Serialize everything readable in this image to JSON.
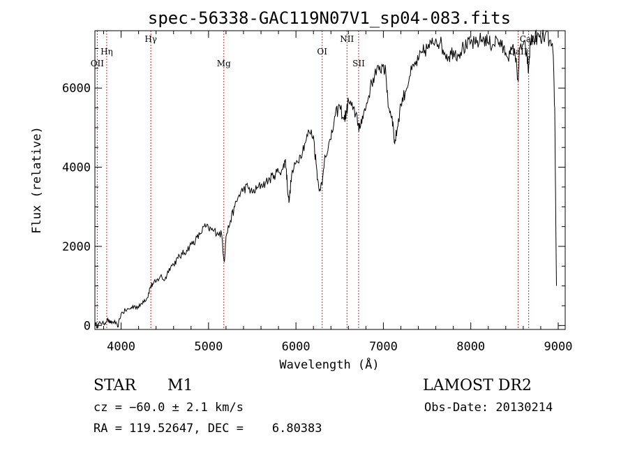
{
  "chart_data": {
    "type": "line",
    "title": "spec-56338-GAC119N07V1_sp04-083.fits",
    "xlabel": "Wavelength (Å)",
    "ylabel": "Flux (relative)",
    "xlim": [
      3700,
      9080
    ],
    "ylim": [
      -100,
      7450
    ],
    "x_ticks": [
      4000,
      5000,
      6000,
      7000,
      8000,
      9000
    ],
    "y_ticks": [
      0,
      2000,
      4000,
      6000
    ],
    "grid": false,
    "series": [
      {
        "color": "#000000",
        "points": [
          [
            3700,
            60
          ],
          [
            3730,
            -20
          ],
          [
            3760,
            80
          ],
          [
            3800,
            40
          ],
          [
            3840,
            150
          ],
          [
            3880,
            60
          ],
          [
            3920,
            100
          ],
          [
            3960,
            -40
          ],
          [
            4000,
            300
          ],
          [
            4050,
            380
          ],
          [
            4100,
            420
          ],
          [
            4150,
            500
          ],
          [
            4200,
            450
          ],
          [
            4250,
            620
          ],
          [
            4300,
            700
          ],
          [
            4330,
            950
          ],
          [
            4360,
            1050
          ],
          [
            4400,
            1100
          ],
          [
            4450,
            1250
          ],
          [
            4500,
            1150
          ],
          [
            4550,
            1450
          ],
          [
            4600,
            1550
          ],
          [
            4650,
            1700
          ],
          [
            4700,
            1800
          ],
          [
            4750,
            1900
          ],
          [
            4800,
            2050
          ],
          [
            4850,
            2150
          ],
          [
            4900,
            2300
          ],
          [
            4950,
            2500
          ],
          [
            5000,
            2450
          ],
          [
            5050,
            2400
          ],
          [
            5100,
            2350
          ],
          [
            5150,
            2300
          ],
          [
            5180,
            1600
          ],
          [
            5200,
            2250
          ],
          [
            5250,
            2650
          ],
          [
            5300,
            3000
          ],
          [
            5350,
            3300
          ],
          [
            5400,
            3450
          ],
          [
            5450,
            3500
          ],
          [
            5500,
            3350
          ],
          [
            5550,
            3450
          ],
          [
            5600,
            3550
          ],
          [
            5650,
            3600
          ],
          [
            5700,
            3700
          ],
          [
            5750,
            3800
          ],
          [
            5800,
            3900
          ],
          [
            5850,
            3950
          ],
          [
            5880,
            4200
          ],
          [
            5900,
            3600
          ],
          [
            5920,
            3100
          ],
          [
            5950,
            3800
          ],
          [
            6000,
            4100
          ],
          [
            6050,
            4300
          ],
          [
            6100,
            4600
          ],
          [
            6150,
            4900
          ],
          [
            6200,
            4800
          ],
          [
            6230,
            4100
          ],
          [
            6260,
            3500
          ],
          [
            6300,
            3550
          ],
          [
            6330,
            4300
          ],
          [
            6400,
            4700
          ],
          [
            6450,
            5300
          ],
          [
            6500,
            5550
          ],
          [
            6550,
            5200
          ],
          [
            6580,
            5400
          ],
          [
            6600,
            5700
          ],
          [
            6650,
            5450
          ],
          [
            6700,
            5300
          ],
          [
            6720,
            4900
          ],
          [
            6760,
            5300
          ],
          [
            6800,
            5500
          ],
          [
            6850,
            6000
          ],
          [
            6900,
            6350
          ],
          [
            6950,
            6450
          ],
          [
            7000,
            6600
          ],
          [
            7030,
            6300
          ],
          [
            7060,
            5500
          ],
          [
            7100,
            5300
          ],
          [
            7130,
            4600
          ],
          [
            7160,
            5000
          ],
          [
            7200,
            5600
          ],
          [
            7250,
            5900
          ],
          [
            7300,
            6300
          ],
          [
            7350,
            6550
          ],
          [
            7400,
            6700
          ],
          [
            7450,
            6900
          ],
          [
            7500,
            7000
          ],
          [
            7550,
            7100
          ],
          [
            7600,
            7250
          ],
          [
            7650,
            7150
          ],
          [
            7700,
            6900
          ],
          [
            7750,
            6800
          ],
          [
            7800,
            6950
          ],
          [
            7850,
            6850
          ],
          [
            7900,
            7000
          ],
          [
            7950,
            7050
          ],
          [
            8000,
            7150
          ],
          [
            8050,
            7100
          ],
          [
            8100,
            7200
          ],
          [
            8150,
            7250
          ],
          [
            8200,
            7150
          ],
          [
            8250,
            7100
          ],
          [
            8300,
            7250
          ],
          [
            8350,
            7050
          ],
          [
            8400,
            6900
          ],
          [
            8450,
            6850
          ],
          [
            8500,
            7000
          ],
          [
            8540,
            6200
          ],
          [
            8560,
            7000
          ],
          [
            8600,
            7100
          ],
          [
            8640,
            6900
          ],
          [
            8660,
            6400
          ],
          [
            8680,
            7150
          ],
          [
            8720,
            7250
          ],
          [
            8760,
            7300
          ],
          [
            8800,
            7200
          ],
          [
            8850,
            7350
          ],
          [
            8900,
            7200
          ],
          [
            8940,
            6900
          ],
          [
            8960,
            5500
          ],
          [
            8980,
            1000
          ]
        ]
      }
    ],
    "lines": [
      {
        "label": "OII",
        "x": 3727,
        "label_row": 3
      },
      {
        "label": "Hη",
        "x": 3835,
        "label_row": 2
      },
      {
        "label": "Hγ",
        "x": 4340,
        "label_row": 1
      },
      {
        "label": "Mg",
        "x": 5175,
        "label_row": 3
      },
      {
        "label": "OI",
        "x": 6300,
        "label_row": 2
      },
      {
        "label": "NII",
        "x": 6584,
        "label_row": 1
      },
      {
        "label": "SII",
        "x": 6717,
        "label_row": 3
      },
      {
        "label": "CaII",
        "x": 8542,
        "label_row": 2
      },
      {
        "label": "CaII",
        "x": 8662,
        "label_row": 1
      }
    ]
  },
  "info": {
    "object_class": "STAR",
    "subclass": "M1",
    "survey": "LAMOST DR2",
    "cz": "cz = −60.0 ± 2.1 km/s",
    "obs_date": "Obs-Date: 20130214",
    "coords": "RA = 119.52647, DEC =    6.80383"
  },
  "colors": {
    "line_marker": "#b03030",
    "spectrum": "#000000"
  }
}
